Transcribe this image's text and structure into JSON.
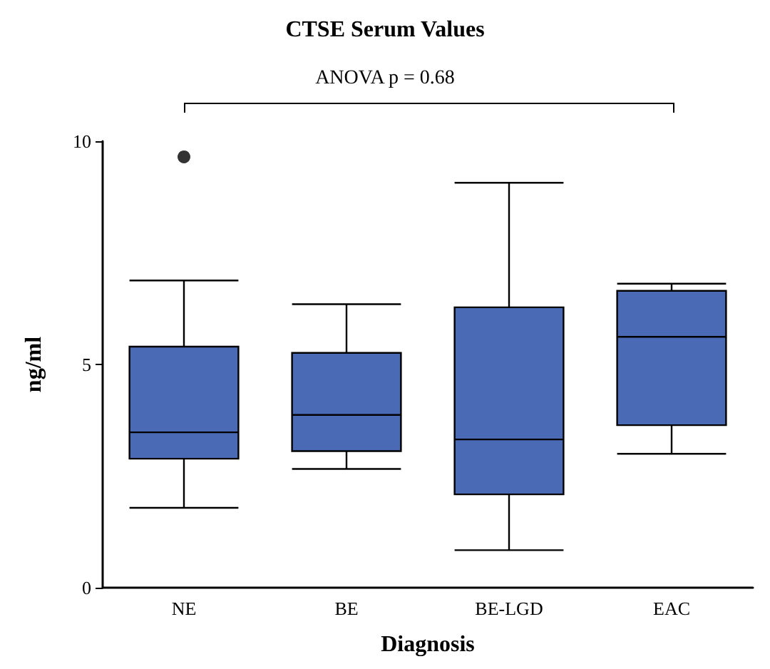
{
  "chart_data": {
    "type": "box",
    "title": "CTSE Serum Values",
    "xlabel": "Diagnosis",
    "ylabel": "ng/ml",
    "annotations": [
      "ANOVA p = 0.68"
    ],
    "categories": [
      "NE",
      "BE",
      "BE-LGD",
      "EAC"
    ],
    "series": [
      {
        "color": "#4a6ab5",
        "boxes": [
          {
            "low": 1.79,
            "q1": 2.89,
            "median": 3.48,
            "q3": 5.4,
            "high": 6.88,
            "outliers": [
              9.65
            ]
          },
          {
            "low": 2.66,
            "q1": 3.06,
            "median": 3.87,
            "q3": 5.26,
            "high": 6.35
          },
          {
            "low": 0.84,
            "q1": 2.09,
            "median": 3.32,
            "q3": 6.28,
            "high": 9.07
          },
          {
            "low": 3.0,
            "q1": 3.64,
            "median": 5.62,
            "q3": 6.65,
            "high": 6.81
          }
        ]
      }
    ],
    "ylim": [
      0,
      10
    ],
    "yticks": [
      0,
      5,
      10
    ],
    "grid": false
  }
}
